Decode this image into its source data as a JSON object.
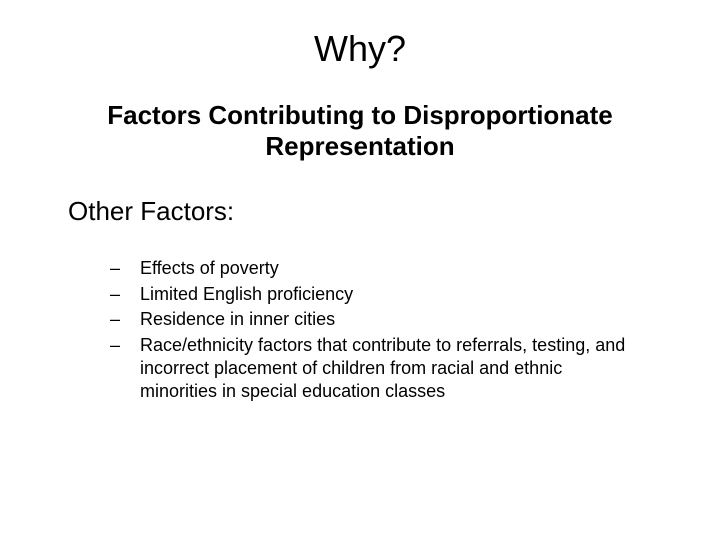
{
  "slide": {
    "title": "Why?",
    "subtitle": "Factors Contributing to Disproportionate Representation",
    "section_heading": "Other Factors:",
    "bullets": [
      "Effects of poverty",
      "Limited English proficiency",
      "Residence in inner cities",
      "Race/ethnicity factors that contribute to referrals, testing, and incorrect placement of children from racial and ethnic minorities in special education classes"
    ],
    "bullet_marker": "–"
  },
  "styling": {
    "background_color": "#ffffff",
    "text_color": "#000000",
    "title_fontsize": 36,
    "subtitle_fontsize": 26,
    "section_heading_fontsize": 26,
    "bullet_fontsize": 18,
    "font_family": "Arial"
  }
}
